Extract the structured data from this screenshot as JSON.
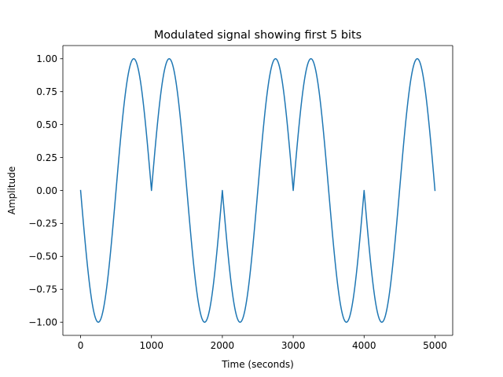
{
  "chart_data": {
    "type": "line",
    "title": "Modulated signal showing first 5 bits",
    "xlabel": "Time (seconds)",
    "ylabel": "Amplitude",
    "xlim": [
      -250,
      5250
    ],
    "ylim": [
      -1.1,
      1.1
    ],
    "grid": false,
    "legend": "none",
    "x_ticks": [
      {
        "value": 0,
        "label": "0"
      },
      {
        "value": 1000,
        "label": "1000"
      },
      {
        "value": 2000,
        "label": "2000"
      },
      {
        "value": 3000,
        "label": "3000"
      },
      {
        "value": 4000,
        "label": "4000"
      },
      {
        "value": 5000,
        "label": "5000"
      }
    ],
    "y_ticks": [
      {
        "value": -1.0,
        "label": "−1.00"
      },
      {
        "value": -0.75,
        "label": "−0.75"
      },
      {
        "value": -0.5,
        "label": "−0.50"
      },
      {
        "value": -0.25,
        "label": "−0.25"
      },
      {
        "value": 0.0,
        "label": "0.00"
      },
      {
        "value": 0.25,
        "label": "0.25"
      },
      {
        "value": 0.5,
        "label": "0.50"
      },
      {
        "value": 0.75,
        "label": "0.75"
      },
      {
        "value": 1.0,
        "label": "1.00"
      }
    ],
    "series": [
      {
        "color": "#1f77b4",
        "x": [
          0,
          125,
          250,
          375,
          500,
          625,
          750,
          875,
          1000,
          1125,
          1250,
          1375,
          1500,
          1625,
          1750,
          1875,
          2000,
          2125,
          2250,
          2375,
          2500,
          2625,
          2750,
          2875,
          3000,
          3125,
          3250,
          3375,
          3500,
          3625,
          3750,
          3875,
          4000,
          4125,
          4250,
          4375,
          4500,
          4625,
          4750,
          4875,
          5000
        ],
        "y": [
          0,
          -0.7071,
          -1,
          -0.7071,
          0,
          0.7071,
          1,
          0.7071,
          0,
          0.7071,
          1,
          0.7071,
          0,
          -0.7071,
          -1,
          -0.7071,
          0,
          -0.7071,
          -1,
          -0.7071,
          0,
          0.7071,
          1,
          0.7071,
          0,
          0.7071,
          1,
          0.7071,
          0,
          -0.7071,
          -1,
          -0.7071,
          0,
          -0.7071,
          -1,
          -0.7071,
          0,
          0.7071,
          1,
          0.7071,
          0
        ]
      }
    ]
  }
}
